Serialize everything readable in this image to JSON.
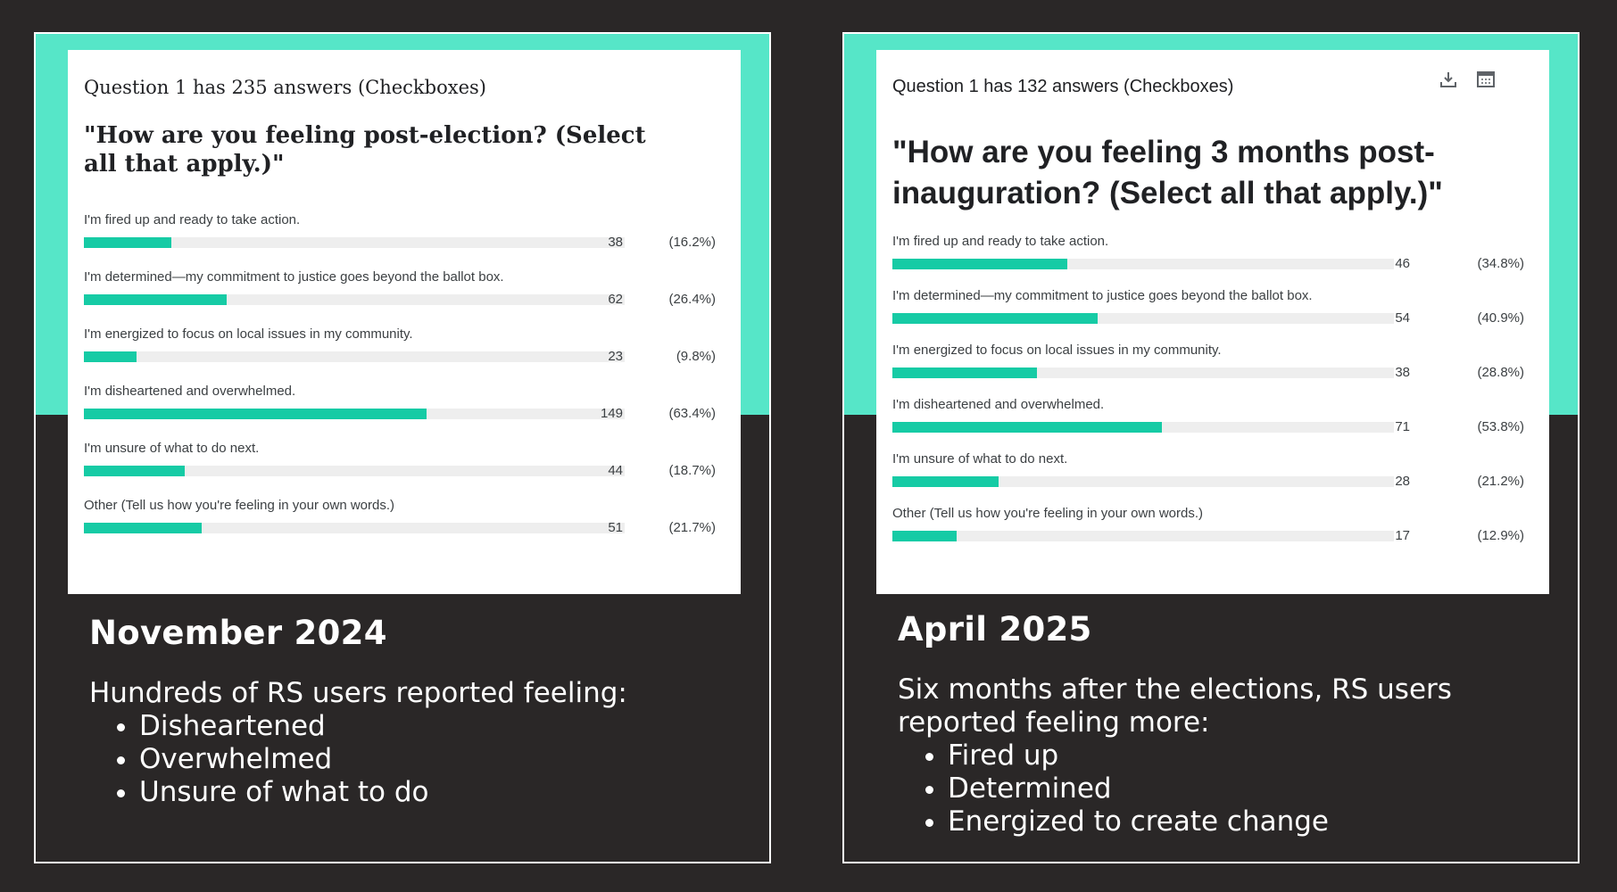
{
  "panels": [
    {
      "question_header": "Question 1 has 235 answers (Checkboxes)",
      "question_title": "\"How are you feeling post-election? (Select all that apply.)\"",
      "heading": "November 2024",
      "body_text": "Hundreds of RS users reported feeling:",
      "bullets": [
        "Disheartened",
        "Overwhelmed",
        "Unsure of what to do"
      ]
    },
    {
      "question_header": "Question 1 has 132 answers (Checkboxes)",
      "question_title": "\"How are you feeling 3 months post-inauguration? (Select all that apply.)\"",
      "heading": "April 2025",
      "body_text": "Six months after the elections, RS users reported feeling more:",
      "bullets": [
        "Fired up",
        "Determined",
        "Energized to create change"
      ],
      "icons": [
        "download-icon",
        "calendar-table-icon"
      ]
    }
  ],
  "chart_data": [
    {
      "type": "bar",
      "orientation": "horizontal",
      "title": "\"How are you feeling post-election? (Select all that apply.)\"",
      "categories": [
        "I'm fired up and ready to take action.",
        "I'm determined—my commitment to justice goes beyond the ballot box.",
        "I'm energized to focus on local issues in my community.",
        "I'm disheartened and overwhelmed.",
        "I'm unsure of what to do next.",
        "Other (Tell us how you're feeling in your own words.)"
      ],
      "values": [
        38,
        62,
        23,
        149,
        44,
        51
      ],
      "percent_labels": [
        "(16.2%)",
        "(26.4%)",
        "(9.8%)",
        "(63.4%)",
        "(18.7%)",
        "(21.7%)"
      ],
      "percents": [
        16.2,
        26.4,
        9.8,
        63.4,
        18.7,
        21.7
      ],
      "bar_color": "#16cba5",
      "track_color": "#eeeeee"
    },
    {
      "type": "bar",
      "orientation": "horizontal",
      "title": "\"How are you feeling 3 months post-inauguration? (Select all that apply.)\"",
      "categories": [
        "I'm fired up and ready to take action.",
        "I'm determined—my commitment to justice goes beyond the ballot box.",
        "I'm energized to focus on local issues in my community.",
        "I'm disheartened and overwhelmed.",
        "I'm unsure of what to do next.",
        "Other (Tell us how you're feeling in your own words.)"
      ],
      "values": [
        46,
        54,
        38,
        71,
        28,
        17
      ],
      "percent_labels": [
        "(34.8%)",
        "(40.9%)",
        "(28.8%)",
        "(53.8%)",
        "(21.2%)",
        "(12.9%)"
      ],
      "percents": [
        34.8,
        40.9,
        28.8,
        53.8,
        21.2,
        12.9
      ],
      "bar_color": "#16cba5",
      "track_color": "#eeeeee"
    }
  ],
  "colors": {
    "background": "#2a2727",
    "accent": "#56e6c8",
    "bar": "#16cba5"
  }
}
